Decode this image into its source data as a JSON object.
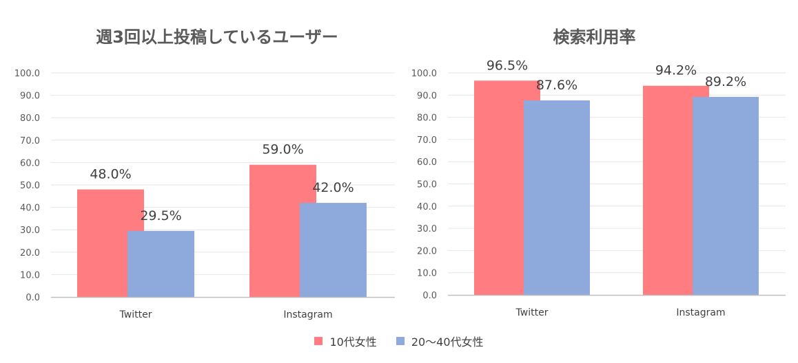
{
  "colors": {
    "series1": "#FF7C80",
    "series2": "#8EA9DB",
    "grid": "#E6E6E6",
    "axis": "#BFBFBF"
  },
  "legend": [
    {
      "name": "10代女性",
      "color": "#FF7C80"
    },
    {
      "name": "20〜40代女性",
      "color": "#8EA9DB"
    }
  ],
  "chart_data": [
    {
      "type": "bar",
      "title": "週3回以上投稿しているユーザー",
      "categories": [
        "Twitter",
        "Instagram"
      ],
      "series": [
        {
          "name": "10代女性",
          "values": [
            48.0,
            59.0
          ]
        },
        {
          "name": "20〜40代女性",
          "values": [
            29.5,
            42.0
          ]
        }
      ],
      "ylim": [
        0,
        100
      ],
      "ytick_step": 10,
      "yticks": [
        "0.0",
        "10.0",
        "20.0",
        "30.0",
        "40.0",
        "50.0",
        "60.0",
        "70.0",
        "80.0",
        "90.0",
        "100.0"
      ],
      "data_labels": [
        [
          "48.0%",
          "59.0%"
        ],
        [
          "29.5%",
          "42.0%"
        ]
      ],
      "grid": true,
      "legend_position": "bottom"
    },
    {
      "type": "bar",
      "title": "検索利用率",
      "categories": [
        "Twitter",
        "Instagram"
      ],
      "series": [
        {
          "name": "10代女性",
          "values": [
            96.5,
            94.2
          ]
        },
        {
          "name": "20〜40代女性",
          "values": [
            87.6,
            89.2
          ]
        }
      ],
      "ylim": [
        0,
        100
      ],
      "ytick_step": 10,
      "yticks": [
        "0.0",
        "10.0",
        "20.0",
        "30.0",
        "40.0",
        "50.0",
        "60.0",
        "70.0",
        "80.0",
        "90.0",
        "100.0"
      ],
      "data_labels": [
        [
          "96.5%",
          "94.2%"
        ],
        [
          "87.6%",
          "89.2%"
        ]
      ],
      "grid": true,
      "legend_position": "bottom"
    }
  ]
}
